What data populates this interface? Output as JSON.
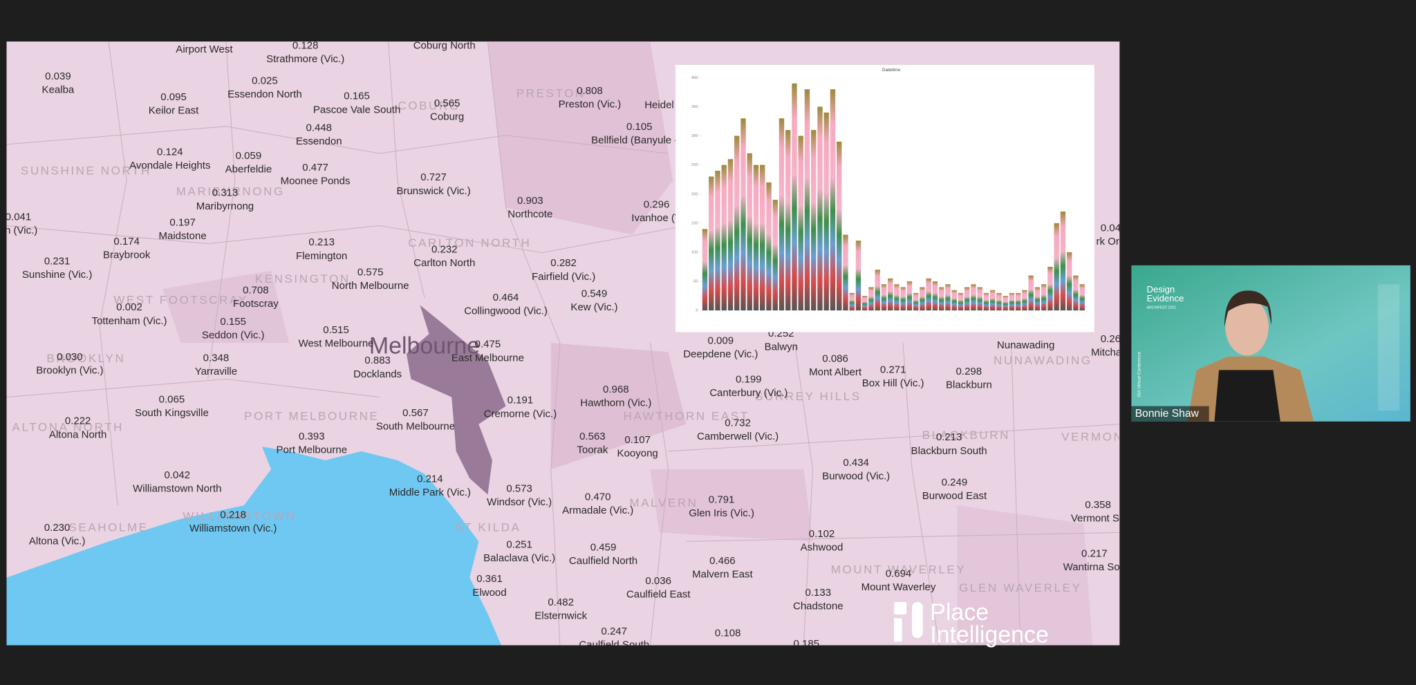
{
  "map": {
    "area_names": [
      "SUNSHINE NORTH",
      "MARIBYRNONG",
      "WEST FOOTSCRAY",
      "BROOKLYN",
      "ALTONA NORTH",
      "PORT MELBOURNE",
      "WILLIAMSTOWN",
      "SEAHOLME",
      "ST KILDA",
      "MALVERN",
      "PRESTON",
      "COBURG",
      "CARLTON NORTH",
      "KENSINGTON",
      "Melbourne",
      "BLACKBURN",
      "NUNAWADING",
      "MOUNT WAVERLEY",
      "GLEN WAVERLEY",
      "HAWTHORN EAST",
      "SURREY HILLS",
      "VERMONT"
    ],
    "place_names": [
      "Airport West",
      "Coburg North",
      "Heidel",
      "Nunawading"
    ],
    "labels": [
      {
        "value": "0.128",
        "name": "Strathmore (Vic.)"
      },
      {
        "value": "0.039",
        "name": "Kealba"
      },
      {
        "value": "0.095",
        "name": "Keilor East"
      },
      {
        "value": "0.025",
        "name": "Essendon North"
      },
      {
        "value": "0.165",
        "name": "Pascoe Vale South"
      },
      {
        "value": "0.565",
        "name": "Coburg"
      },
      {
        "value": "0.808",
        "name": "Preston (Vic.)"
      },
      {
        "value": "0.105",
        "name": "Bellfield (Banyule - V"
      },
      {
        "value": "0.448",
        "name": "Essendon"
      },
      {
        "value": "0.124",
        "name": "Avondale Heights"
      },
      {
        "value": "0.059",
        "name": "Aberfeldie"
      },
      {
        "value": "0.477",
        "name": "Moonee Ponds"
      },
      {
        "value": "0.727",
        "name": "Brunswick (Vic.)"
      },
      {
        "value": "0.903",
        "name": "Northcote"
      },
      {
        "value": "0.296",
        "name": "Ivanhoe (V"
      },
      {
        "value": "0.313",
        "name": "Maribyrnong"
      },
      {
        "value": "0.197",
        "name": "Maidstone"
      },
      {
        "value": "0.041",
        "name": "on (Vic.)"
      },
      {
        "value": "0.174",
        "name": "Braybrook"
      },
      {
        "value": "0.213",
        "name": "Flemington"
      },
      {
        "value": "0.232",
        "name": "Carlton North"
      },
      {
        "value": "0.282",
        "name": "Fairfield (Vic.)"
      },
      {
        "value": "0.231",
        "name": "Sunshine (Vic.)"
      },
      {
        "value": "0.575",
        "name": "North Melbourne"
      },
      {
        "value": "0.708",
        "name": "Footscray"
      },
      {
        "value": "0.464",
        "name": "Collingwood (Vic.)"
      },
      {
        "value": "0.549",
        "name": "Kew (Vic.)"
      },
      {
        "value": "0.002",
        "name": "Tottenham (Vic.)"
      },
      {
        "value": "0.155",
        "name": "Seddon (Vic.)"
      },
      {
        "value": "0.515",
        "name": "West Melbourne"
      },
      {
        "value": "0.475",
        "name": "East Melbourne"
      },
      {
        "value": "0.883",
        "name": "Docklands"
      },
      {
        "value": "0.030",
        "name": "Brooklyn (Vic.)"
      },
      {
        "value": "0.348",
        "name": "Yarraville"
      },
      {
        "value": "0.191",
        "name": "Cremorne (Vic.)"
      },
      {
        "value": "0.968",
        "name": "Hawthorn (Vic.)"
      },
      {
        "value": "0.065",
        "name": "South Kingsville"
      },
      {
        "value": "0.567",
        "name": "South Melbourne"
      },
      {
        "value": "0.222",
        "name": "Altona North"
      },
      {
        "value": "0.563",
        "name": "Toorak"
      },
      {
        "value": "0.107",
        "name": "Kooyong"
      },
      {
        "value": "0.393",
        "name": "Port Melbourne"
      },
      {
        "value": "0.042",
        "name": "Williamstown North"
      },
      {
        "value": "0.214",
        "name": "Middle Park (Vic.)"
      },
      {
        "value": "0.573",
        "name": "Windsor (Vic.)"
      },
      {
        "value": "0.470",
        "name": "Armadale (Vic.)"
      },
      {
        "value": "0.218",
        "name": "Williamstown (Vic.)"
      },
      {
        "value": "0.230",
        "name": "Altona (Vic.)"
      },
      {
        "value": "0.251",
        "name": "Balaclava (Vic.)"
      },
      {
        "value": "0.459",
        "name": "Caulfield North"
      },
      {
        "value": "0.361",
        "name": "Elwood"
      },
      {
        "value": "0.036",
        "name": "Caulfield East"
      },
      {
        "value": "0.482",
        "name": "Elsternwick"
      },
      {
        "value": "0.247",
        "name": "Caulfield South"
      },
      {
        "value": "0.009",
        "name": "Deepdene (Vic.)"
      },
      {
        "value": "0.252",
        "name": "Balwyn"
      },
      {
        "value": "0.086",
        "name": "Mont Albert"
      },
      {
        "value": "0.271",
        "name": "Box Hill (Vic.)"
      },
      {
        "value": "0.298",
        "name": "Blackburn"
      },
      {
        "value": "0.199",
        "name": "Canterbury (Vic.)"
      },
      {
        "value": "0.732",
        "name": "Camberwell (Vic.)"
      },
      {
        "value": "0.213",
        "name": "Blackburn South"
      },
      {
        "value": "0.434",
        "name": "Burwood (Vic.)"
      },
      {
        "value": "0.249",
        "name": "Burwood East"
      },
      {
        "value": "0.791",
        "name": "Glen Iris (Vic.)"
      },
      {
        "value": "0.102",
        "name": "Ashwood"
      },
      {
        "value": "0.466",
        "name": "Malvern East"
      },
      {
        "value": "0.694",
        "name": "Mount Waverley"
      },
      {
        "value": "0.133",
        "name": "Chadstone"
      },
      {
        "value": "0.358",
        "name": "Vermont So"
      },
      {
        "value": "0.217",
        "name": "Wantirna Sou"
      },
      {
        "value": "0.04",
        "name": "rk Ord"
      },
      {
        "value": "0.26",
        "name": "Mitcham"
      },
      {
        "value": "0.108"
      },
      {
        "value": "0.185"
      }
    ]
  },
  "chart_data": {
    "type": "bar",
    "title": "Datetime",
    "ylim": [
      0,
      400
    ],
    "yticks": [
      0,
      50,
      100,
      150,
      200,
      250,
      300,
      350,
      400
    ],
    "values": [
      140,
      230,
      240,
      250,
      260,
      300,
      330,
      270,
      250,
      250,
      220,
      190,
      330,
      310,
      390,
      300,
      380,
      310,
      350,
      340,
      380,
      290,
      130,
      30,
      120,
      25,
      40,
      70,
      45,
      55,
      45,
      40,
      50,
      30,
      40,
      55,
      50,
      40,
      45,
      35,
      30,
      40,
      45,
      40,
      30,
      35,
      30,
      25,
      30,
      30,
      35,
      60,
      40,
      45,
      75,
      150,
      170,
      100,
      60,
      45
    ]
  },
  "logo": {
    "line1": "Place",
    "line2": "Intelligence"
  },
  "video": {
    "participant": "Bonnie Shaw",
    "slide_line1": "Design",
    "slide_line2": "Evidence",
    "slide_line3": "ARCHIFEST 2021",
    "slide_side": "SIA Virtual Conference"
  }
}
